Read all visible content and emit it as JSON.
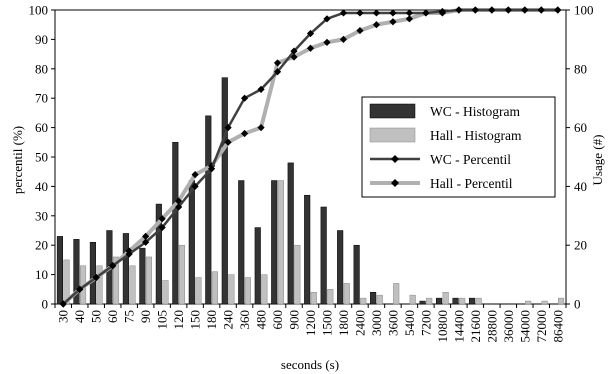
{
  "chart_data": {
    "type": "bar+line",
    "categories": [
      "30",
      "40",
      "50",
      "60",
      "75",
      "90",
      "105",
      "120",
      "150",
      "180",
      "240",
      "360",
      "480",
      "600",
      "900",
      "1200",
      "1500",
      "1800",
      "2400",
      "3000",
      "3600",
      "5400",
      "7200",
      "10800",
      "14400",
      "21600",
      "28800",
      "36000",
      "54000",
      "72000",
      "86400"
    ],
    "xlabel": "seconds (s)",
    "ylabel_left": "percentil (%)",
    "ylabel_right": "Usage (#)",
    "ylim_left": [
      0,
      100
    ],
    "ylim_right": [
      0,
      100
    ],
    "yticks_left": [
      "0",
      "10",
      "20",
      "30",
      "40",
      "50",
      "60",
      "70",
      "80",
      "90",
      "100"
    ],
    "yticks_right": [
      "0",
      "20",
      "40",
      "60",
      "80",
      "100"
    ],
    "legend_position": "right-center",
    "series": [
      {
        "name": "WC - Histogram",
        "kind": "bar",
        "axis": "right",
        "color": "#333333",
        "values": [
          23,
          22,
          21,
          25,
          24,
          19,
          34,
          55,
          42,
          64,
          77,
          42,
          26,
          42,
          48,
          37,
          33,
          25,
          20,
          4,
          0,
          0,
          1,
          2,
          2,
          2,
          0,
          0,
          0,
          0,
          0
        ]
      },
      {
        "name": "Hall - Histogram",
        "kind": "bar",
        "axis": "right",
        "color": "#c0c0c0",
        "values": [
          15,
          13,
          13,
          16,
          13,
          16,
          8,
          20,
          9,
          11,
          10,
          9,
          10,
          42,
          20,
          4,
          5,
          7,
          2,
          3,
          7,
          3,
          2,
          4,
          2,
          2,
          0,
          0,
          1,
          1,
          2
        ]
      },
      {
        "name": "WC - Percentil",
        "kind": "line",
        "axis": "left",
        "color": "#404040",
        "values": [
          0,
          5,
          9,
          13,
          17,
          21,
          26,
          33,
          40,
          46,
          60,
          70,
          73,
          79,
          86,
          92,
          97,
          99,
          99,
          99,
          99,
          99,
          99,
          99.5,
          100,
          100,
          100,
          100,
          100,
          100,
          100
        ]
      },
      {
        "name": "Hall - Percentil",
        "kind": "line",
        "axis": "left",
        "color": "#b0b0b0",
        "values": [
          0,
          5,
          9,
          13,
          18,
          23,
          29,
          35,
          44,
          47,
          55,
          58,
          60,
          82,
          84,
          87,
          89,
          90,
          93,
          95,
          96,
          97,
          99,
          99,
          100,
          100,
          100,
          100,
          100,
          100,
          100
        ]
      }
    ]
  }
}
